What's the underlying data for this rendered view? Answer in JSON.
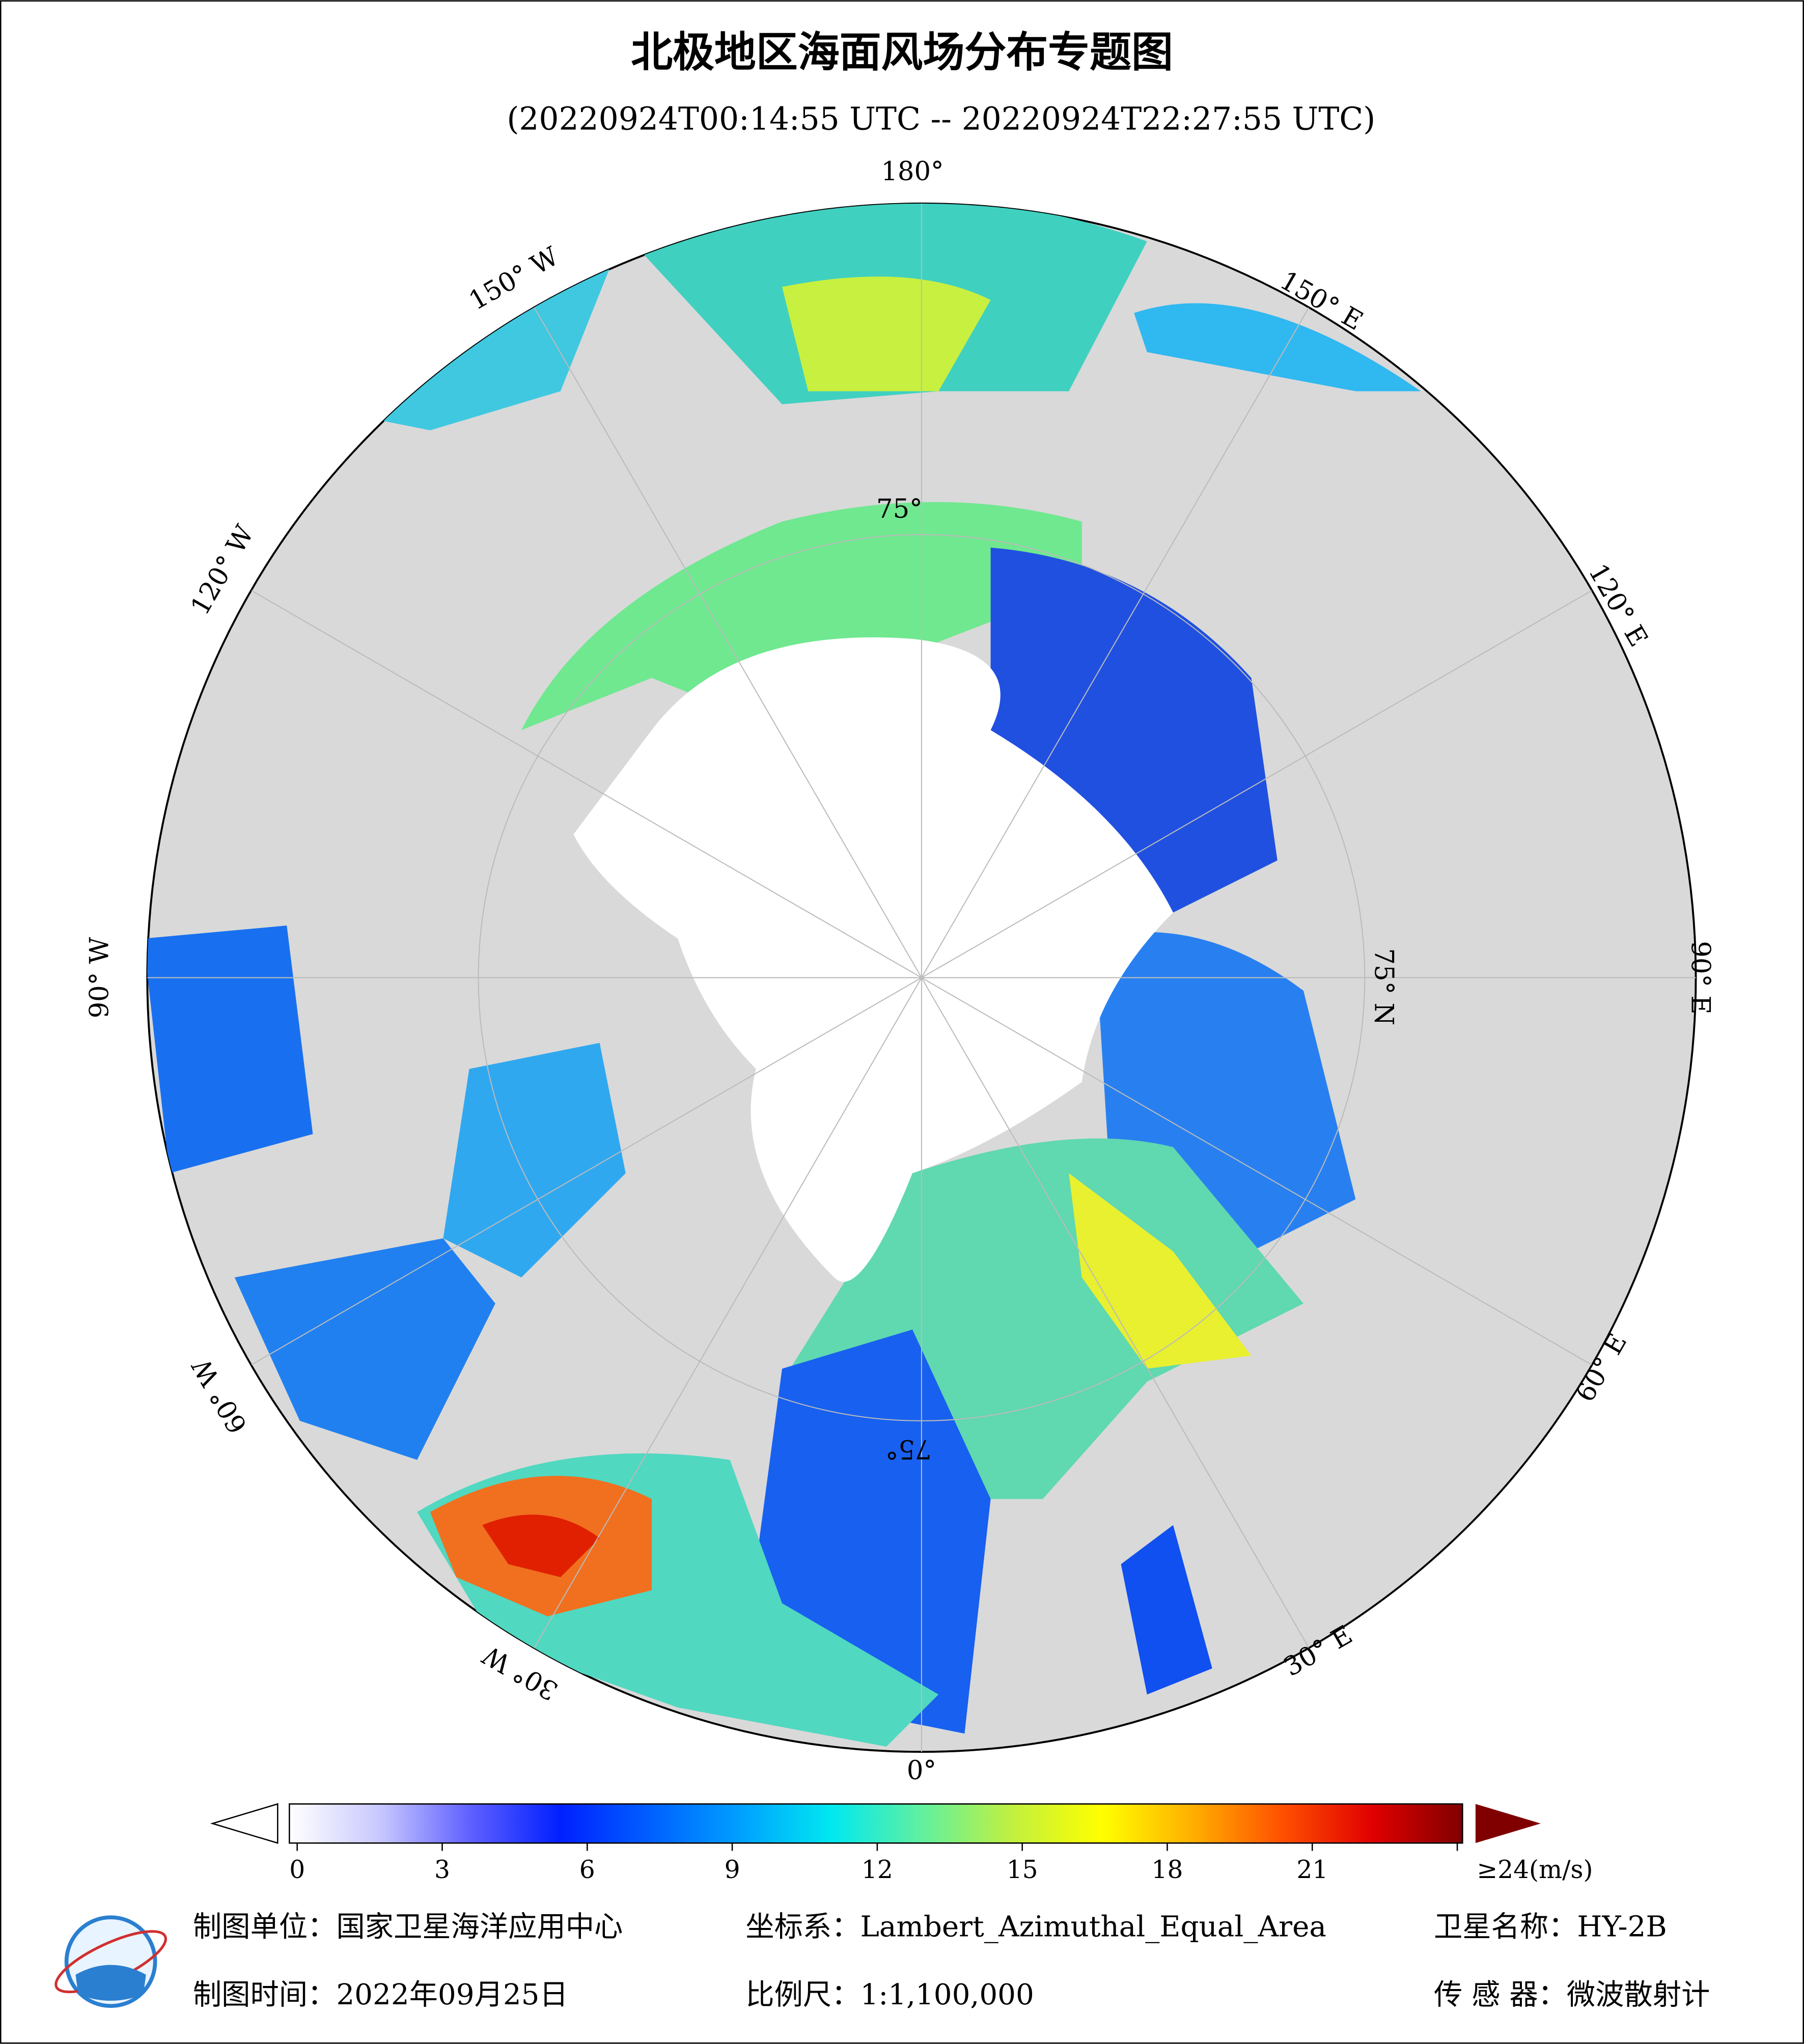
{
  "title": "北极地区海面风场分布专题图",
  "subtitle": "(20220924T00:14:55 UTC -- 20220924T22:27:55 UTC)",
  "map": {
    "graticule_labels": [
      "180°",
      "150° E",
      "120° E",
      "90° E",
      "60° E",
      "30° E",
      "0°",
      "30° W",
      "60° W",
      "90° W",
      "120° W",
      "150° W",
      "75° N",
      "75°",
      "75°"
    ]
  },
  "colorbar": {
    "ticks": [
      0,
      3,
      6,
      9,
      12,
      15,
      18,
      21,
      {
        "value": 24,
        "label": "≥24(m/s)"
      }
    ],
    "colors": [
      "#ffffff",
      "#c8c8ff",
      "#6060ff",
      "#0020ff",
      "#0060ff",
      "#00a0ff",
      "#00e8f0",
      "#60f0a0",
      "#c0f040",
      "#ffff00",
      "#ffb000",
      "#ff5000",
      "#e00000",
      "#800000"
    ]
  },
  "footer": {
    "unit": "制图单位：国家卫星海洋应用中心",
    "projection": "坐标系：Lambert_Azimuthal_Equal_Area",
    "satellite": "卫星名称：HY-2B",
    "date": "制图时间：2022年09月25日",
    "scale": "比例尺：1:1,100,000",
    "sensor": "传 感 器：微波散射计"
  }
}
